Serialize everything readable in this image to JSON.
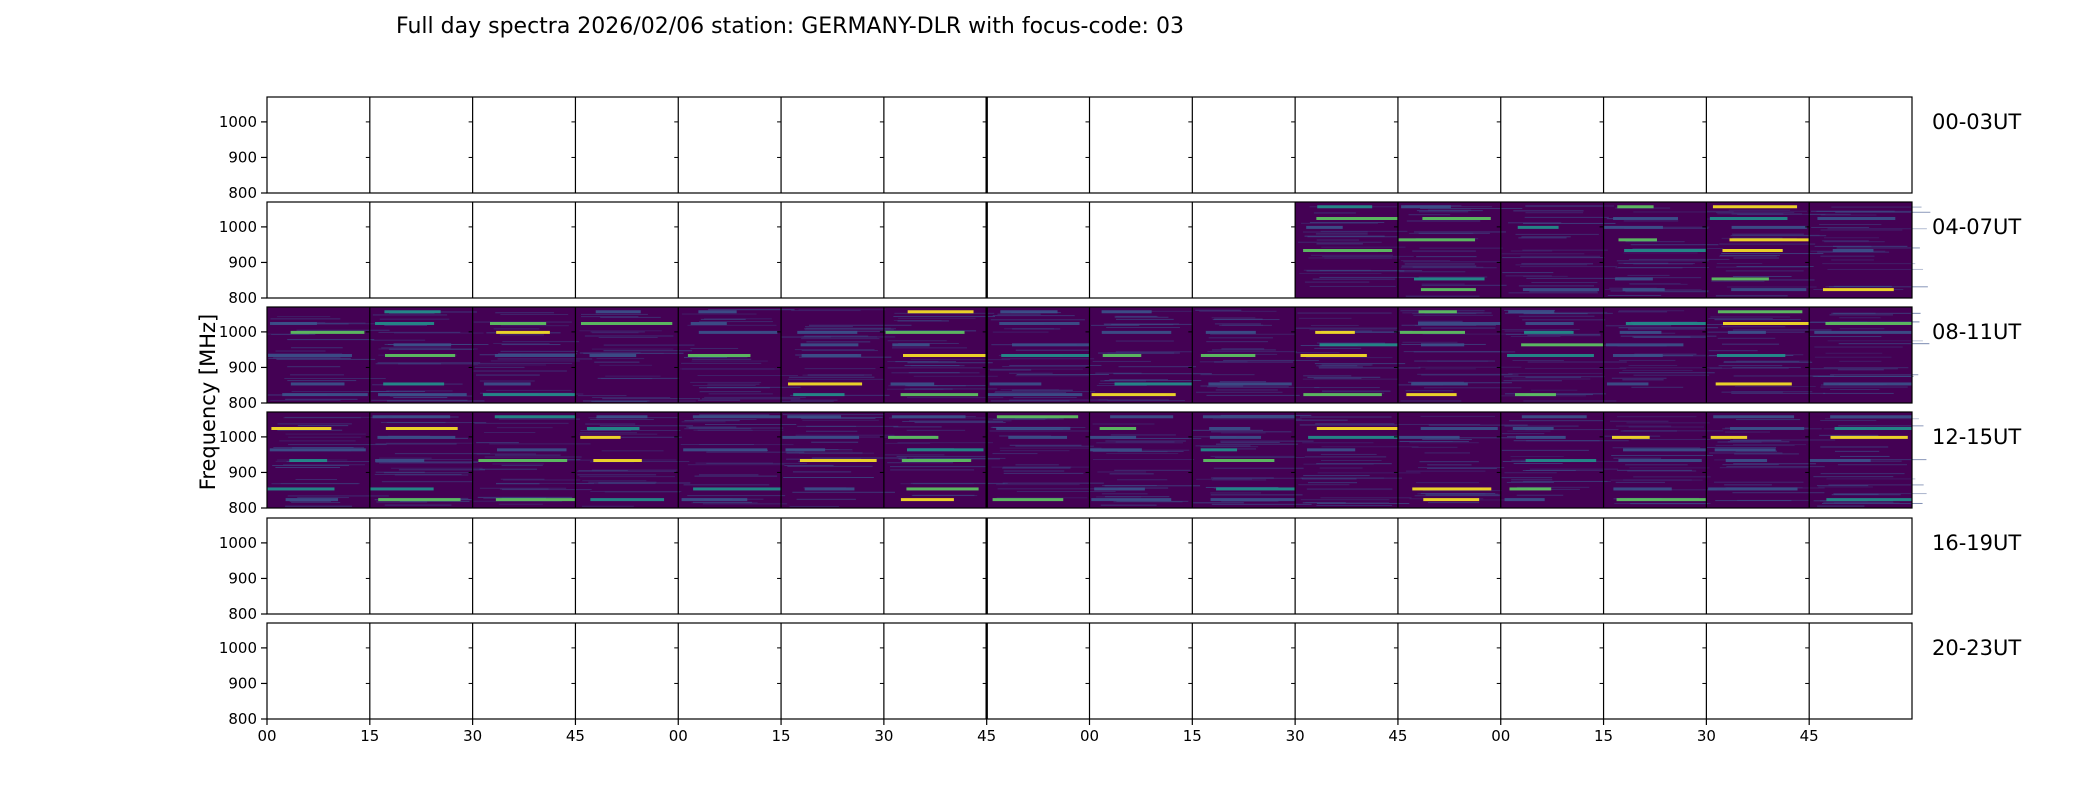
{
  "chart_data": {
    "type": "heatmap",
    "title": "Full day spectra 2026/02/06 station: GERMANY-DLR with focus-code: 03",
    "ylabel": "Frequency [MHz]",
    "xlabel": "",
    "ylim": [
      800,
      1070
    ],
    "yticks": [
      800,
      900,
      1000
    ],
    "xtick_labels": [
      "00",
      "15",
      "30",
      "45",
      "00",
      "15",
      "30",
      "45",
      "00",
      "15",
      "30",
      "45",
      "00",
      "15",
      "30",
      "45"
    ],
    "segments_per_row": 16,
    "segment_minutes": 15,
    "colormap": [
      "#440154",
      "#3b528b",
      "#21918c",
      "#5ec962",
      "#fde725"
    ],
    "rows": [
      {
        "label": "00-03UT",
        "data_from_segment": 16
      },
      {
        "label": "04-07UT",
        "data_from_segment": 10
      },
      {
        "label": "08-11UT",
        "data_from_segment": 0
      },
      {
        "label": "12-15UT",
        "data_from_segment": 0
      },
      {
        "label": "16-19UT",
        "data_from_segment": 16
      },
      {
        "label": "20-23UT",
        "data_from_segment": 16
      }
    ],
    "bright_bands_mhz": [
      825,
      855,
      935,
      965,
      1000,
      1025,
      1058
    ]
  }
}
